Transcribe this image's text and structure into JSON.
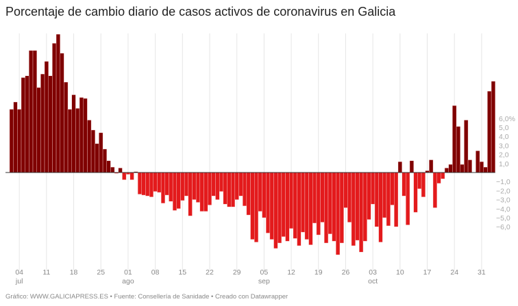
{
  "title": "Porcentaje de cambio diario de casos activos de coronavirus en Galicia",
  "footer": "Gráfico: WWW.GALICIAPRESS.ES • Fuente: Consellería de Sanidade • Creado con Datawrapper",
  "colors": {
    "positive": "#7f0000",
    "negative": "#e31a1c",
    "grid": "#e6e6e6",
    "baseline": "#333333"
  },
  "chart_data": {
    "type": "bar",
    "title": "Porcentaje de cambio diario de casos activos de coronavirus en Galicia",
    "xlabel": "",
    "ylabel": "",
    "x_start": "2020-07-02",
    "x_end": "2020-11-03",
    "ylim": [
      -10.8,
      15.4
    ],
    "grid": "vertical",
    "y_ticks": [
      {
        "value": 6,
        "label": "6,0%"
      },
      {
        "value": 5,
        "label": "5,0"
      },
      {
        "value": 4,
        "label": "4,0"
      },
      {
        "value": 3,
        "label": "3,0"
      },
      {
        "value": 2,
        "label": "2,0"
      },
      {
        "value": 1,
        "label": "1,0"
      },
      {
        "value": -1,
        "label": "−1,0"
      },
      {
        "value": -2,
        "label": "−2,0"
      },
      {
        "value": -3,
        "label": "−3,0"
      },
      {
        "value": -4,
        "label": "−4,0"
      },
      {
        "value": -5,
        "label": "−5,0"
      },
      {
        "value": -6,
        "label": "−6,0"
      }
    ],
    "x_ticks": [
      {
        "date": "2020-07-04",
        "label": "04",
        "month": "jul"
      },
      {
        "date": "2020-07-11",
        "label": "11",
        "month": ""
      },
      {
        "date": "2020-07-18",
        "label": "18",
        "month": ""
      },
      {
        "date": "2020-07-25",
        "label": "25",
        "month": ""
      },
      {
        "date": "2020-08-01",
        "label": "01",
        "month": "ago"
      },
      {
        "date": "2020-08-08",
        "label": "08",
        "month": ""
      },
      {
        "date": "2020-08-15",
        "label": "15",
        "month": ""
      },
      {
        "date": "2020-08-22",
        "label": "22",
        "month": ""
      },
      {
        "date": "2020-08-29",
        "label": "29",
        "month": ""
      },
      {
        "date": "2020-09-05",
        "label": "05",
        "month": "sep"
      },
      {
        "date": "2020-09-12",
        "label": "12",
        "month": ""
      },
      {
        "date": "2020-09-19",
        "label": "19",
        "month": ""
      },
      {
        "date": "2020-09-26",
        "label": "26",
        "month": ""
      },
      {
        "date": "2020-10-03",
        "label": "03",
        "month": "oct"
      },
      {
        "date": "2020-10-10",
        "label": "10",
        "month": ""
      },
      {
        "date": "2020-10-17",
        "label": "17",
        "month": ""
      },
      {
        "date": "2020-10-24",
        "label": "24",
        "month": ""
      },
      {
        "date": "2020-10-31",
        "label": "31",
        "month": ""
      }
    ],
    "values": [
      7.0,
      7.8,
      7.0,
      10.5,
      10.7,
      13.5,
      13.5,
      9.4,
      10.9,
      12.3,
      10.7,
      14.3,
      15.3,
      13.2,
      10.0,
      7.0,
      8.6,
      7.1,
      8.3,
      8.2,
      5.8,
      4.7,
      3.2,
      4.4,
      2.6,
      1.3,
      0.6,
      -0.1,
      0.5,
      -0.8,
      -0.2,
      -0.8,
      0.1,
      -2.4,
      -2.5,
      -2.6,
      -2.7,
      -2.1,
      -2.2,
      -3.4,
      -2.5,
      -3.2,
      -4.2,
      -4.0,
      -3.1,
      -2.6,
      -4.8,
      -3.0,
      -3.3,
      -4.3,
      -4.3,
      -3.6,
      -2.6,
      -3.0,
      -2.1,
      -3.5,
      -3.8,
      -3.8,
      -3.0,
      -2.6,
      -3.7,
      -4.7,
      -7.4,
      -7.7,
      -4.3,
      -5.0,
      -6.7,
      -7.4,
      -8.4,
      -7.8,
      -7.1,
      -7.6,
      -6.2,
      -7.3,
      -8.1,
      -6.6,
      -7.4,
      -8.0,
      -5.6,
      -6.9,
      -5.5,
      -7.8,
      -6.8,
      -7.6,
      -9.1,
      -7.8,
      -3.9,
      -5.5,
      -8.1,
      -7.5,
      -8.8,
      -7.6,
      -5.2,
      -3.5,
      -6.0,
      -7.7,
      -5.0,
      -5.9,
      -3.6,
      -6.0,
      1.2,
      -2.6,
      -5.8,
      1.3,
      -4.4,
      -1.8,
      -2.7,
      0.2,
      1.4,
      -3.9,
      -1.2,
      -0.7,
      0.5,
      0.9,
      7.4,
      5.1,
      0.9,
      5.8,
      1.4,
      0,
      2.4,
      1.2,
      0.6,
      9.0,
      10.1
    ]
  }
}
